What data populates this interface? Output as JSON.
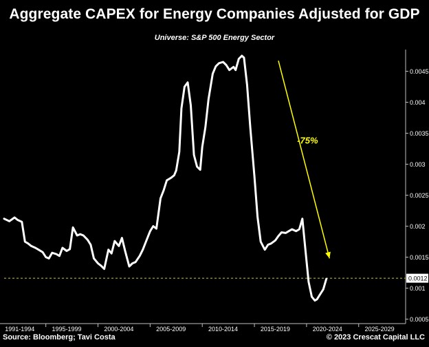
{
  "chart_data": {
    "type": "line",
    "title": "Aggregate CAPEX for Energy Companies Adjusted for GDP",
    "subtitle": "Universe: S&P 500 Energy Sector",
    "xlabel": "",
    "ylabel": "",
    "xlim": [
      1991.0,
      2029.5
    ],
    "ylim": [
      0.00045,
      0.00485
    ],
    "x_tick_labels": [
      "1991-1994",
      "1995-1999",
      "2000-2004",
      "2005-2009",
      "2010-2014",
      "2015-2019",
      "2020-2024",
      "2025-2029"
    ],
    "x_tick_label_centers": [
      1992.5,
      1997.0,
      2002.0,
      2007.0,
      2012.0,
      2017.0,
      2022.0,
      2027.0
    ],
    "x_tick_boundaries": [
      1995.0,
      2000.0,
      2005.0,
      2010.0,
      2015.0,
      2020.0,
      2025.0
    ],
    "y_ticks": [
      0.0005,
      0.001,
      0.0015,
      0.002,
      0.0025,
      0.003,
      0.0035,
      0.004,
      0.0045
    ],
    "y_tick_labels": [
      "0.0005",
      "0.001",
      "0.0015",
      "0.002",
      "0.0025",
      "0.003",
      "0.0035",
      "0.004",
      "0.0045"
    ],
    "current_value_label": "0.0012",
    "reference_line_value": 0.00116,
    "grid": false,
    "series": [
      {
        "color": "#ffffff",
        "x": [
          1991.0,
          1991.5,
          1992.0,
          1992.3,
          1992.7,
          1993.0,
          1993.3,
          1993.6,
          1994.0,
          1994.3,
          1994.7,
          1995.0,
          1995.3,
          1995.6,
          1996.0,
          1996.3,
          1996.6,
          1997.0,
          1997.3,
          1997.6,
          1998.0,
          1998.3,
          1998.6,
          1999.0,
          1999.3,
          1999.6,
          2000.0,
          2000.3,
          2000.6,
          2001.0,
          2001.3,
          2001.6,
          2002.0,
          2002.3,
          2002.6,
          2003.0,
          2003.3,
          2003.6,
          2004.0,
          2004.3,
          2004.6,
          2005.0,
          2005.3,
          2005.6,
          2006.0,
          2006.3,
          2006.6,
          2007.0,
          2007.3,
          2007.5,
          2007.8,
          2008.0,
          2008.3,
          2008.6,
          2008.9,
          2009.2,
          2009.5,
          2009.8,
          2010.0,
          2010.3,
          2010.6,
          2011.0,
          2011.3,
          2011.6,
          2012.0,
          2012.3,
          2012.6,
          2013.0,
          2013.2,
          2013.5,
          2013.8,
          2014.0,
          2014.3,
          2014.6,
          2015.0,
          2015.3,
          2015.6,
          2016.0,
          2016.3,
          2016.6,
          2017.0,
          2017.3,
          2017.6,
          2018.0,
          2018.3,
          2018.6,
          2019.0,
          2019.3,
          2019.6,
          2019.9,
          2020.2,
          2020.5,
          2020.8,
          2021.0,
          2021.3,
          2021.6,
          2021.9
        ],
        "values": [
          0.00212,
          0.00208,
          0.00214,
          0.0021,
          0.00207,
          0.00175,
          0.00172,
          0.00168,
          0.00165,
          0.00162,
          0.00158,
          0.0015,
          0.00148,
          0.00157,
          0.00155,
          0.00152,
          0.00165,
          0.0016,
          0.00163,
          0.00198,
          0.00185,
          0.00187,
          0.00185,
          0.00178,
          0.0017,
          0.00148,
          0.0014,
          0.00136,
          0.00131,
          0.00162,
          0.00156,
          0.00176,
          0.00168,
          0.00181,
          0.0016,
          0.00135,
          0.0014,
          0.00142,
          0.00152,
          0.00162,
          0.00175,
          0.00192,
          0.002,
          0.00196,
          0.00245,
          0.00258,
          0.00274,
          0.00278,
          0.00282,
          0.0029,
          0.0032,
          0.0039,
          0.00425,
          0.00432,
          0.00395,
          0.00315,
          0.00296,
          0.00291,
          0.00328,
          0.0036,
          0.00405,
          0.00446,
          0.00458,
          0.00463,
          0.00465,
          0.0046,
          0.00452,
          0.00457,
          0.00452,
          0.0047,
          0.00475,
          0.00472,
          0.00428,
          0.0036,
          0.0028,
          0.00215,
          0.00175,
          0.00162,
          0.0017,
          0.00172,
          0.00177,
          0.00184,
          0.0019,
          0.00189,
          0.00192,
          0.00195,
          0.00192,
          0.00195,
          0.00212,
          0.0016,
          0.0011,
          0.00086,
          0.0008,
          0.00082,
          0.0009,
          0.00098,
          0.00115
        ]
      }
    ],
    "annotations": [
      {
        "text": "-75%",
        "color": "#ffff00",
        "arrow_from": [
          2017.3,
          0.00467
        ],
        "arrow_to": [
          2022.2,
          0.00148
        ],
        "text_at": [
          2020.1,
          0.00339
        ]
      }
    ],
    "colors": {
      "background": "#000000",
      "line": "#ffffff",
      "arrow": "#ffff00",
      "reference_line": "#cccc33",
      "axis": "#bfbfbf"
    }
  },
  "footer": {
    "source": "Source: Bloomberg; Tavi Costa",
    "copyright": "© 2023 Crescat Capital LLC"
  }
}
